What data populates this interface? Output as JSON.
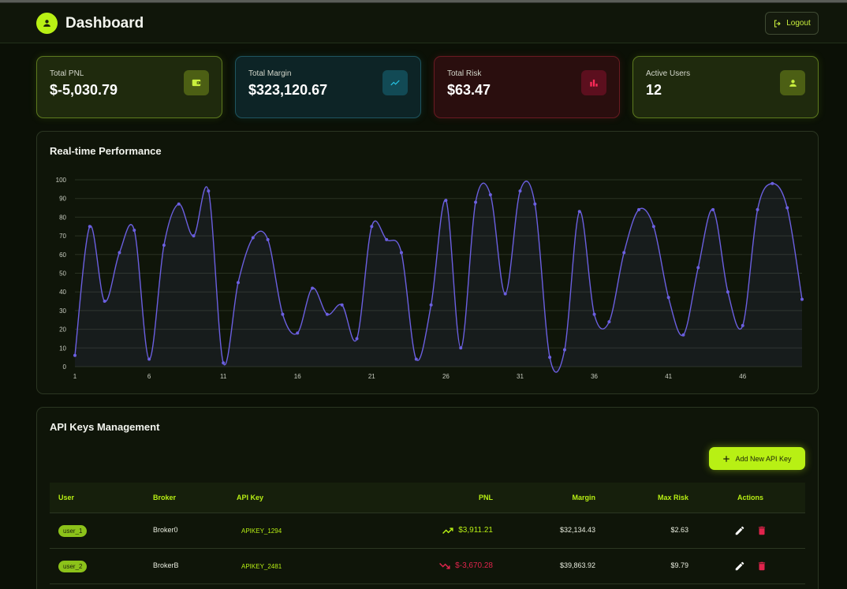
{
  "header": {
    "title": "Dashboard",
    "logout_label": "Logout"
  },
  "stats": [
    {
      "label": "Total PNL",
      "value": "$-5,030.79",
      "icon": "wallet-icon",
      "accent": "#b8f014"
    },
    {
      "label": "Total Margin",
      "value": "$323,120.67",
      "icon": "trending-up-icon",
      "accent": "#20b6d6"
    },
    {
      "label": "Total Risk",
      "value": "$63.47",
      "icon": "bar-chart-icon",
      "accent": "#e0244c"
    },
    {
      "label": "Active Users",
      "value": "12",
      "icon": "person-icon",
      "accent": "#b8f014"
    }
  ],
  "performance": {
    "title": "Real-time Performance"
  },
  "chart_data": {
    "type": "area",
    "title": "Real-time Performance",
    "x": [
      1,
      2,
      3,
      4,
      5,
      6,
      7,
      8,
      9,
      10,
      11,
      12,
      13,
      14,
      15,
      16,
      17,
      18,
      19,
      20,
      21,
      22,
      23,
      24,
      25,
      26,
      27,
      28,
      29,
      30,
      31,
      32,
      33,
      34,
      35,
      36,
      37,
      38,
      39,
      40,
      41,
      42,
      43,
      44,
      45,
      46,
      47,
      48,
      49,
      50
    ],
    "xticks": [
      1,
      6,
      11,
      16,
      21,
      26,
      31,
      36,
      41,
      46
    ],
    "values": [
      6,
      75,
      35,
      61,
      73,
      4,
      65,
      87,
      70,
      94,
      2,
      45,
      69,
      68,
      28,
      18,
      42,
      28,
      33,
      15,
      75,
      68,
      61,
      4,
      33,
      89,
      10,
      88,
      92,
      39,
      94,
      87,
      5,
      9,
      83,
      28,
      24,
      61,
      84,
      75,
      37,
      17,
      53,
      84,
      40,
      22,
      84,
      98,
      85,
      36
    ],
    "ylim": [
      0,
      100
    ],
    "yticks": [
      0,
      10,
      20,
      30,
      40,
      50,
      60,
      70,
      80,
      90,
      100
    ],
    "grid": true,
    "color": "#6b5fe0"
  },
  "api_keys": {
    "title": "API Keys Management",
    "add_label": "Add New API Key",
    "columns": [
      "User",
      "Broker",
      "API Key",
      "PNL",
      "Margin",
      "Max Risk",
      "Actions"
    ],
    "rows": [
      {
        "user": "user_1",
        "broker": "Broker0",
        "api_key": "APIKEY_1294",
        "pnl": "$3,911.21",
        "pnl_trend": "up",
        "margin": "$32,134.43",
        "max_risk": "$2.63"
      },
      {
        "user": "user_2",
        "broker": "BrokerB",
        "api_key": "APIKEY_2481",
        "pnl": "$-3,670.28",
        "pnl_trend": "down",
        "margin": "$39,863.92",
        "max_risk": "$9.79"
      }
    ]
  },
  "colors": {
    "positive": "#b8f014",
    "negative": "#e0244c"
  }
}
